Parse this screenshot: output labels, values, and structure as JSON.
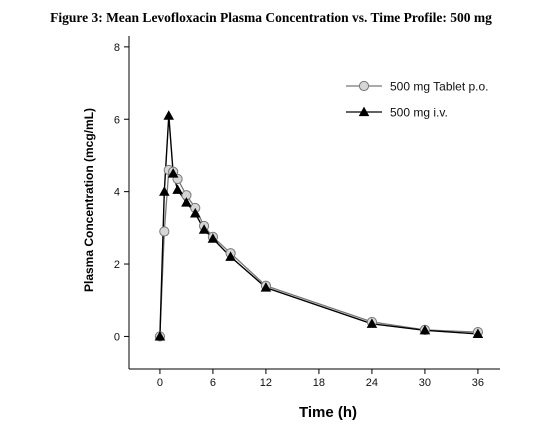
{
  "chart_data": {
    "type": "line",
    "title": "Figure 3: Mean Levofloxacin Plasma Concentration vs. Time Profile: 500 mg",
    "xlabel": "Time (h)",
    "ylabel": "Plasma Concentration (mcg/mL)",
    "xlim": [
      -3.5,
      38.5
    ],
    "ylim": [
      -0.9,
      8.3
    ],
    "xticks": [
      0,
      6,
      12,
      18,
      24,
      30,
      36
    ],
    "yticks": [
      0,
      2,
      4,
      6,
      8
    ],
    "grid": false,
    "legend_position": "top-right",
    "series": [
      {
        "name": "500 mg Tablet p.o.",
        "marker": "circle",
        "color": "#777777",
        "marker_fill": "#d6d6d6",
        "points": [
          {
            "x": 0,
            "y": 0.0
          },
          {
            "x": 0.5,
            "y": 2.9
          },
          {
            "x": 1,
            "y": 4.6
          },
          {
            "x": 1.5,
            "y": 4.55
          },
          {
            "x": 2,
            "y": 4.35
          },
          {
            "x": 3,
            "y": 3.9
          },
          {
            "x": 4,
            "y": 3.55
          },
          {
            "x": 5,
            "y": 3.05
          },
          {
            "x": 6,
            "y": 2.75
          },
          {
            "x": 8,
            "y": 2.3
          },
          {
            "x": 12,
            "y": 1.4
          },
          {
            "x": 24,
            "y": 0.4
          },
          {
            "x": 30,
            "y": 0.18
          },
          {
            "x": 36,
            "y": 0.12
          }
        ]
      },
      {
        "name": "500 mg i.v.",
        "marker": "triangle",
        "color": "#000000",
        "marker_fill": "#000000",
        "points": [
          {
            "x": 0,
            "y": 0.0
          },
          {
            "x": 0.5,
            "y": 4.0
          },
          {
            "x": 1,
            "y": 6.1
          },
          {
            "x": 1.5,
            "y": 4.5
          },
          {
            "x": 2,
            "y": 4.05
          },
          {
            "x": 3,
            "y": 3.7
          },
          {
            "x": 4,
            "y": 3.4
          },
          {
            "x": 5,
            "y": 2.95
          },
          {
            "x": 6,
            "y": 2.7
          },
          {
            "x": 8,
            "y": 2.2
          },
          {
            "x": 12,
            "y": 1.35
          },
          {
            "x": 24,
            "y": 0.35
          },
          {
            "x": 30,
            "y": 0.17
          },
          {
            "x": 36,
            "y": 0.07
          }
        ]
      }
    ]
  }
}
